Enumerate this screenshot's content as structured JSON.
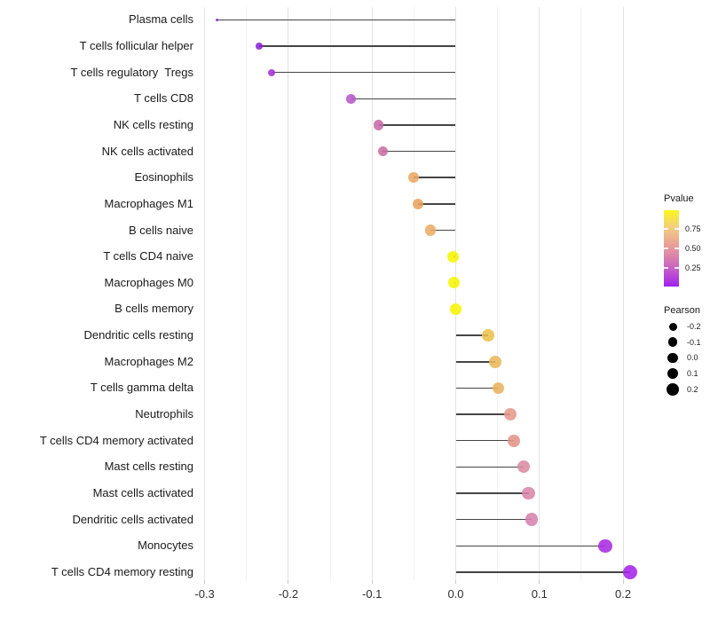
{
  "figure": {
    "background": "#ffffff",
    "axis_text_color": "#303030",
    "grid_major_color": "#e3e3e3",
    "grid_minor_color": "#f1f1f1",
    "stem_color": "#454545"
  },
  "legend": {
    "pvalue": {
      "title": "Pvalue",
      "tick_labels": [
        "0.75",
        "0.50",
        "0.25"
      ],
      "gradient_top_color": "#FAF61C",
      "gradient_bottom_color": "#A021F0"
    },
    "pearson": {
      "title": "Pearson",
      "tick_labels": [
        "-0.2",
        "-0.1",
        "0.0",
        "0.1",
        "0.2"
      ]
    }
  },
  "chart_data": {
    "type": "scatter",
    "subtype": "lollipop",
    "orientation": "horizontal",
    "title": "",
    "xlabel": "",
    "ylabel": "",
    "xlim": [
      -0.33,
      0.25
    ],
    "grid": "vertical, minor every 0.05",
    "x_ticks": [
      "-0.3",
      "-0.2",
      "-0.1",
      "0.0",
      "0.1",
      "0.2"
    ],
    "x_tick_values": [
      -0.3,
      -0.2,
      -0.1,
      0.0,
      0.1,
      0.2
    ],
    "color_encodes": "Pvalue",
    "size_encodes": "Pearson",
    "points": [
      {
        "label": "Plasma cells",
        "pearson": -0.285,
        "color": "#8320D6"
      },
      {
        "label": "T cells follicular helper",
        "pearson": -0.235,
        "color": "#8E23DC"
      },
      {
        "label": "T cells regulatory  Tregs",
        "pearson": -0.22,
        "color": "#A331D8"
      },
      {
        "label": "T cells CD8",
        "pearson": -0.125,
        "color": "#B757C9"
      },
      {
        "label": "NK cells resting",
        "pearson": -0.092,
        "color": "#C76BA8"
      },
      {
        "label": "NK cells activated",
        "pearson": -0.087,
        "color": "#C9709F"
      },
      {
        "label": "Eosinophils",
        "pearson": -0.05,
        "color": "#EAA762"
      },
      {
        "label": "Macrophages M1",
        "pearson": -0.045,
        "color": "#E8A35E"
      },
      {
        "label": "B cells naive",
        "pearson": -0.03,
        "color": "#EAAD65"
      },
      {
        "label": "T cells CD4 naive",
        "pearson": -0.003,
        "color": "#F7F402"
      },
      {
        "label": "Macrophages M0",
        "pearson": -0.002,
        "color": "#F7F402"
      },
      {
        "label": "B cells memory",
        "pearson": 0.0,
        "color": "#F7F402"
      },
      {
        "label": "Dendritic cells resting",
        "pearson": 0.039,
        "color": "#EDC04F"
      },
      {
        "label": "Macrophages M2",
        "pearson": 0.047,
        "color": "#EBB75C"
      },
      {
        "label": "T cells gamma delta",
        "pearson": 0.051,
        "color": "#EAB25E"
      },
      {
        "label": "Neutrophils",
        "pearson": 0.065,
        "color": "#E59B8C"
      },
      {
        "label": "T cells CD4 memory activated",
        "pearson": 0.069,
        "color": "#E29489"
      },
      {
        "label": "Mast cells resting",
        "pearson": 0.081,
        "color": "#DB8BA1"
      },
      {
        "label": "Mast cells activated",
        "pearson": 0.087,
        "color": "#D886A8"
      },
      {
        "label": "Dendritic cells activated",
        "pearson": 0.091,
        "color": "#D583AE"
      },
      {
        "label": "Monocytes",
        "pearson": 0.179,
        "color": "#A92BE0"
      },
      {
        "label": "T cells CD4 memory resting",
        "pearson": 0.208,
        "color": "#A526E8"
      }
    ]
  }
}
